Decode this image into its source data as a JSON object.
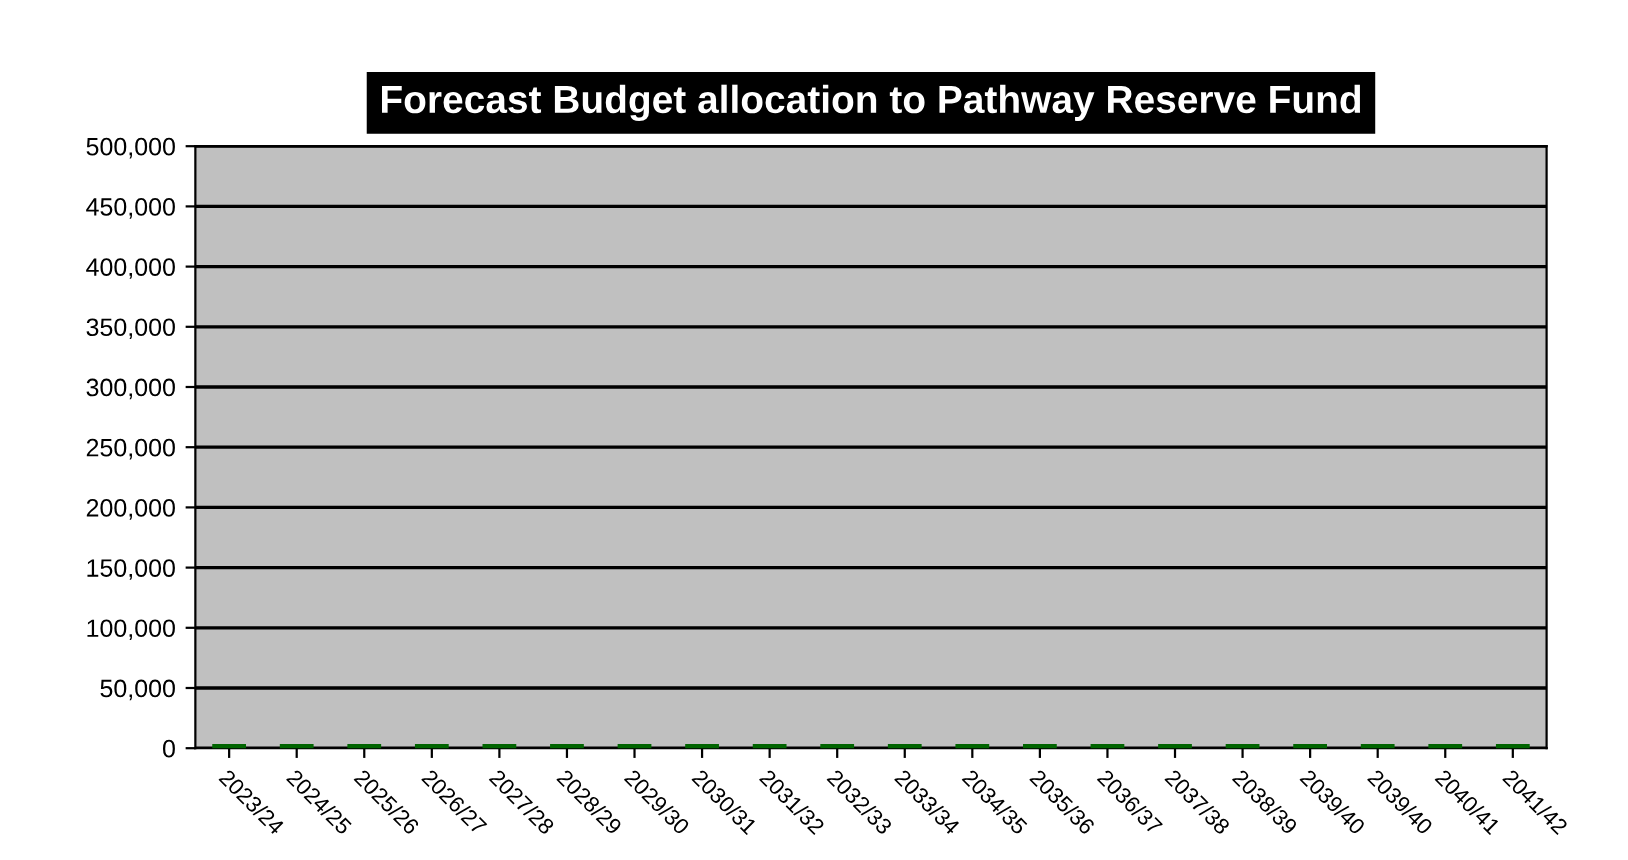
{
  "chart_data": {
    "type": "bar",
    "title": "Forecast Budget allocation to Pathway Reserve Fund",
    "categories": [
      "2023/24",
      "2024/25",
      "2025/26",
      "2026/27",
      "2027/28",
      "2028/29",
      "2029/30",
      "2030/31",
      "2031/32",
      "2032/33",
      "2033/34",
      "2034/35",
      "2035/36",
      "2036/37",
      "2037/38",
      "2038/39",
      "2039/40",
      "2039/40",
      "2040/41",
      "2041/42"
    ],
    "values": [
      0,
      0,
      0,
      0,
      0,
      0,
      0,
      0,
      0,
      0,
      0,
      0,
      0,
      0,
      0,
      0,
      0,
      0,
      0,
      0
    ],
    "color": "#006400",
    "ylim": [
      0,
      500000
    ],
    "yticks": [
      {
        "value": 0,
        "label": "0"
      },
      {
        "value": 50000,
        "label": "50,000"
      },
      {
        "value": 100000,
        "label": "100,000"
      },
      {
        "value": 150000,
        "label": "150,000"
      },
      {
        "value": 200000,
        "label": "200,000"
      },
      {
        "value": 250000,
        "label": "250,000"
      },
      {
        "value": 300000,
        "label": "300,000"
      },
      {
        "value": 350000,
        "label": "350,000"
      },
      {
        "value": 400000,
        "label": "400,000"
      },
      {
        "value": 450000,
        "label": "450,000"
      },
      {
        "value": 500000,
        "label": "500,000"
      }
    ],
    "grid": "y"
  }
}
